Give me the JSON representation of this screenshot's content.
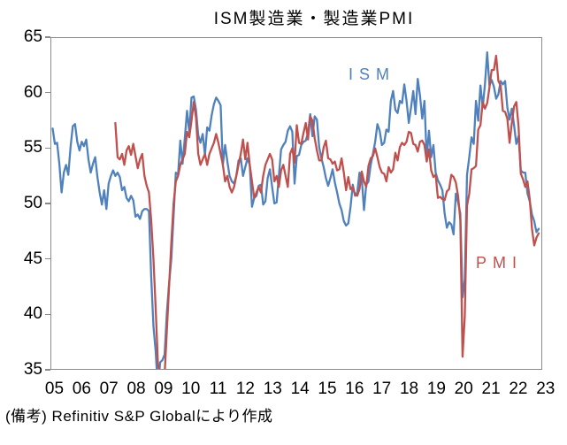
{
  "title": "ISM製造業・製造業PMI",
  "note": "(備考) Refinitiv S&P Globalにより作成",
  "colors": {
    "ism": "#4F81BD",
    "pmi": "#C0504D",
    "axis": "#8a8a8a",
    "text": "#000000"
  },
  "chart_data": {
    "type": "line",
    "title": "ISM製造業・製造業PMI",
    "xlabel": "",
    "ylabel": "",
    "ylim": [
      35,
      65
    ],
    "y_ticks": [
      65,
      60,
      55,
      50,
      45,
      40,
      35
    ],
    "x_tick_labels": [
      "05",
      "06",
      "07",
      "08",
      "09",
      "10",
      "11",
      "12",
      "13",
      "14",
      "15",
      "16",
      "17",
      "18",
      "19",
      "20",
      "21",
      "22",
      "23"
    ],
    "x_unit": "month",
    "x_range": [
      "2005-01",
      "2023-02"
    ],
    "grid": false,
    "legend_position": "inline-labels",
    "series": [
      {
        "name": "ISM",
        "color": "#4F81BD",
        "start": "2005-01",
        "values": [
          56.8,
          55.4,
          55.5,
          53.6,
          51.0,
          52.8,
          53.5,
          52.6,
          55.1,
          57.0,
          57.2,
          55.6,
          54.8,
          55.6,
          55.2,
          55.8,
          54.0,
          52.8,
          53.6,
          54.2,
          52.4,
          51.0,
          49.9,
          51.2,
          49.5,
          51.8,
          52.5,
          53.0,
          52.5,
          52.8,
          52.4,
          51.2,
          51.5,
          50.5,
          50.2,
          50.7,
          50.3,
          48.8,
          49.0,
          48.6,
          49.3,
          49.5,
          49.5,
          49.3,
          43.4,
          38.9,
          36.6,
          33.1,
          35.6,
          35.8,
          36.3,
          40.1,
          42.8,
          45.0,
          48.9,
          52.8,
          52.6,
          55.7,
          53.6,
          55.9,
          58.4,
          56.5,
          59.6,
          59.7,
          58.5,
          56.2,
          55.5,
          56.3,
          54.4,
          56.9,
          56.6,
          58.0,
          59.0,
          59.6,
          59.3,
          58.9,
          53.5,
          55.3,
          53.8,
          52.5,
          52.0,
          51.8,
          52.5,
          53.9,
          54.1,
          52.5,
          53.3,
          54.1,
          53.5,
          49.7,
          50.5,
          50.7,
          51.6,
          51.7,
          49.9,
          50.2,
          52.3,
          53.1,
          51.5,
          50.0,
          50.1,
          52.5,
          54.9,
          55.3,
          55.6,
          56.6,
          57.0,
          56.5,
          51.8,
          54.3,
          54.4,
          55.3,
          55.6,
          55.7,
          56.4,
          58.1,
          56.1,
          57.9,
          57.6,
          55.1,
          54.1,
          53.3,
          52.3,
          51.6,
          52.3,
          53.1,
          51.9,
          51.0,
          50.0,
          49.4,
          48.4,
          48.0,
          48.2,
          49.7,
          51.7,
          50.7,
          51.0,
          52.8,
          52.3,
          49.4,
          51.7,
          52.0,
          53.5,
          54.5,
          55.6,
          57.2,
          56.6,
          55.3,
          55.5,
          56.7,
          56.5,
          59.3,
          60.2,
          58.5,
          58.2,
          59.3,
          59.1,
          60.8,
          59.3,
          57.3,
          58.7,
          60.2,
          58.1,
          61.3,
          59.8,
          57.7,
          59.3,
          54.1,
          56.6,
          54.2,
          55.3,
          52.8,
          52.1,
          51.7,
          51.2,
          49.1,
          47.8,
          48.3,
          48.1,
          47.2,
          50.9,
          50.1,
          49.1,
          41.5,
          43.1,
          52.6,
          54.2,
          56.0,
          55.4,
          59.3,
          57.5,
          60.7,
          58.7,
          60.8,
          63.7,
          60.7,
          61.2,
          60.6,
          59.5,
          59.9,
          61.1,
          60.8,
          61.1,
          58.7,
          57.6,
          58.6,
          57.1,
          55.4,
          56.1,
          53.0,
          52.8,
          52.8,
          50.9,
          50.2,
          49.0,
          48.4,
          47.4,
          47.7
        ]
      },
      {
        "name": "PMI",
        "color": "#C0504D",
        "start": "2007-05",
        "values": [
          57.3,
          54.2,
          54.0,
          54.5,
          53.5,
          54.8,
          55.2,
          54.4,
          55.4,
          54.3,
          53.2,
          54.0,
          54.5,
          52.5,
          51.6,
          51.0,
          48.5,
          45.0,
          40.5,
          35.5,
          34.2,
          33.8,
          34.5,
          38.5,
          42.5,
          46.5,
          50.0,
          52.0,
          52.5,
          53.5,
          54.0,
          54.5,
          56.5,
          56.0,
          57.5,
          59.2,
          57.8,
          54.5,
          53.5,
          54.0,
          54.5,
          53.5,
          54.5,
          55.0,
          55.5,
          56.3,
          55.5,
          54.5,
          53.5,
          52.0,
          52.5,
          51.5,
          51.0,
          51.5,
          52.5,
          53.5,
          54.5,
          55.8,
          54.0,
          55.5,
          53.5,
          52.0,
          50.5,
          51.0,
          51.5,
          51.0,
          52.5,
          53.5,
          54.0,
          54.5,
          54.0,
          52.0,
          52.5,
          51.5,
          53.0,
          53.5,
          52.5,
          51.5,
          54.5,
          55.0,
          53.7,
          57.1,
          55.5,
          55.4,
          56.4,
          57.3,
          55.8,
          57.9,
          57.5,
          55.9,
          54.8,
          53.9,
          53.9,
          55.1,
          55.7,
          54.1,
          54.0,
          53.6,
          53.8,
          53.0,
          53.1,
          54.1,
          52.8,
          51.2,
          52.4,
          51.3,
          51.5,
          50.8,
          50.7,
          51.3,
          52.9,
          52.0,
          51.5,
          53.4,
          54.1,
          54.3,
          55.0,
          54.2,
          53.3,
          52.8,
          52.7,
          52.0,
          53.3,
          52.8,
          53.1,
          54.6,
          53.9,
          55.1,
          55.5,
          55.3,
          55.6,
          56.5,
          56.4,
          55.4,
          55.3,
          54.7,
          55.6,
          55.7,
          55.3,
          53.8,
          54.9,
          53.0,
          52.4,
          52.6,
          50.5,
          50.6,
          50.4,
          50.3,
          51.1,
          51.3,
          52.6,
          52.4,
          51.9,
          50.7,
          48.5,
          36.1,
          39.8,
          49.8,
          50.9,
          53.1,
          53.2,
          53.4,
          56.7,
          57.1,
          59.2,
          58.6,
          59.1,
          60.5,
          62.1,
          62.1,
          63.4,
          61.1,
          60.7,
          58.4,
          58.3,
          57.7,
          55.5,
          57.3,
          58.8,
          59.2,
          57.0,
          52.7,
          52.2,
          51.5,
          52.0,
          50.4,
          47.7,
          46.2,
          46.9,
          47.3
        ]
      }
    ]
  }
}
